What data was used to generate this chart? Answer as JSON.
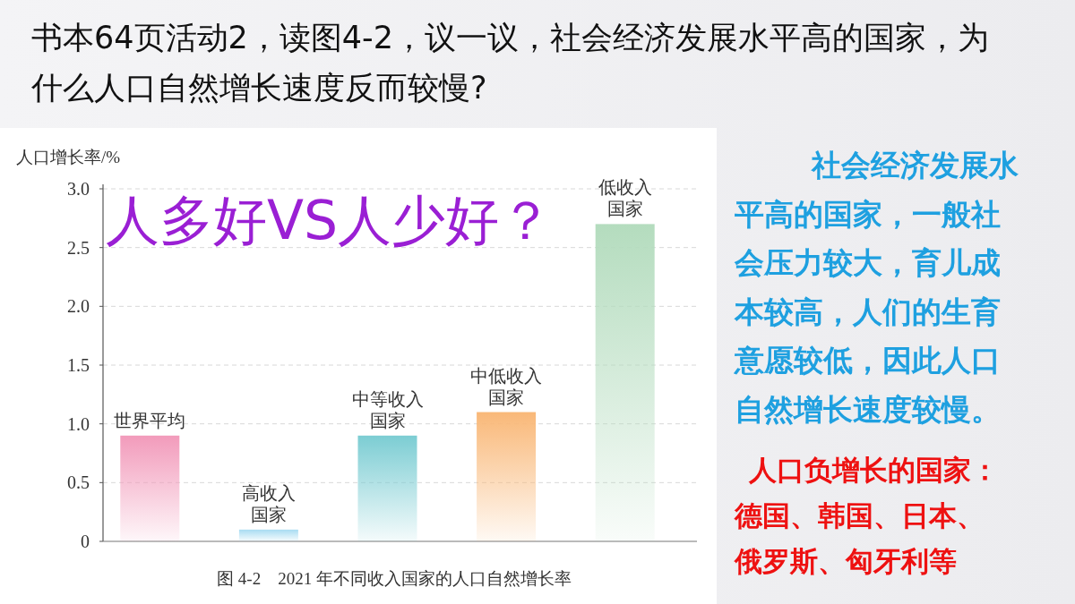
{
  "chart_data": {
    "type": "bar",
    "title": "书本64页活动2，读图4-2，议一议，社会经济发展水平高的国家，为什么人口自然增长速度反而较慢?",
    "ylabel": "人口增长率/%",
    "categories": [
      "世界平均",
      "高收入国家",
      "中等收入国家",
      "中低收入国家",
      "低收入国家"
    ],
    "values": [
      0.9,
      0.1,
      0.9,
      1.1,
      2.7
    ],
    "colors": [
      "#f29bbb",
      "#a8dcf2",
      "#7ccdd3",
      "#f9b878",
      "#b4dcbe"
    ],
    "ylim": [
      0,
      3
    ],
    "yticks": [
      0,
      {
        "value": 0.5,
        "label": "0.5"
      },
      {
        "value": 1,
        "label": "1.0"
      },
      {
        "value": 1.5,
        "label": "1.5"
      },
      {
        "value": 2,
        "label": "2.0"
      },
      {
        "value": 2.5,
        "label": "2.5"
      },
      {
        "value": 3,
        "label": "3.0"
      }
    ],
    "grid": "y",
    "annotations": [
      "图 4-2　2021 年不同收入国家的人口自然增长率",
      "人多好VS人少好？",
      "社会经济发展水平高的国家，一般社会压力较大，育儿成本较高，人们的生育意愿较低，因此人口自然增长速度较慢。",
      "人口负增长的国家：德国、韩国、日本、俄罗斯、匈牙利等"
    ]
  }
}
